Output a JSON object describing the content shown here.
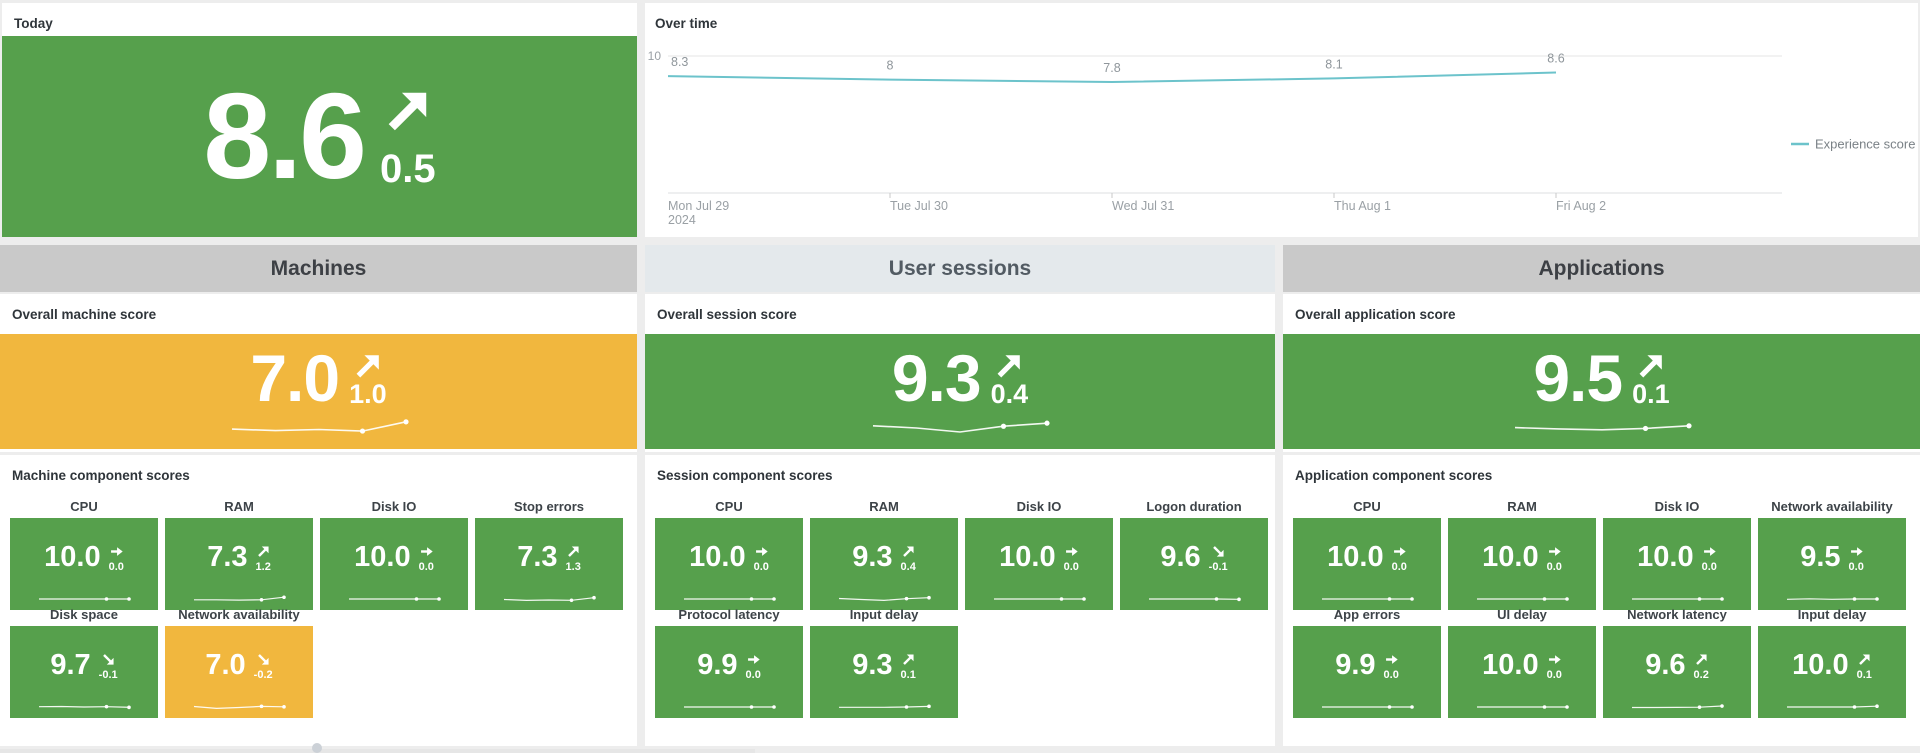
{
  "colors": {
    "green": "#56a04c",
    "yellow": "#f1b73e",
    "teal": "#6cc3cb",
    "header_gray": "#c9c9c9",
    "header_light": "#e4e9ec",
    "page_bg": "#ededed"
  },
  "today": {
    "title": "Today",
    "score": "8.6",
    "delta": "0.5",
    "trend": "up",
    "color": "green"
  },
  "over_time": {
    "title": "Over time"
  },
  "chart_data": [
    {
      "type": "line",
      "title": "Over time",
      "x": [
        "Mon Jul 29\n2024",
        "Tue Jul 30",
        "Wed Jul 31",
        "Thu Aug 1",
        "Fri Aug 2"
      ],
      "series": [
        {
          "name": "Experience score",
          "values": [
            8.3,
            8,
            7.8,
            8.1,
            8.6
          ]
        }
      ],
      "point_labels": [
        "8.3",
        "8",
        "7.8",
        "8.1",
        "8.6"
      ],
      "ylim": [
        0,
        10
      ],
      "y_ticks": [
        10
      ],
      "grid": "single gridline at y=10",
      "legend_position": "right",
      "line_color": "#6cc3cb"
    }
  ],
  "sections": [
    {
      "title": "Machines",
      "header_theme": "gray",
      "overall_title": "Overall machine score",
      "overall": {
        "score": "7.0",
        "delta": "1.0",
        "trend": "up",
        "color": "yellow",
        "spark": [
          4.5,
          3.8,
          4.3,
          3.6,
          7.8
        ]
      },
      "components_title": "Machine component scores",
      "components": [
        {
          "label": "CPU",
          "score": "10.0",
          "delta": "0.0",
          "trend": "flat",
          "color": "green",
          "spark": [
            5,
            5,
            5,
            5,
            5
          ]
        },
        {
          "label": "RAM",
          "score": "7.3",
          "delta": "1.2",
          "trend": "up",
          "color": "green",
          "spark": [
            4,
            4,
            3.6,
            4,
            7.2
          ]
        },
        {
          "label": "Disk IO",
          "score": "10.0",
          "delta": "0.0",
          "trend": "flat",
          "color": "green",
          "spark": [
            5,
            5,
            5,
            5,
            5
          ]
        },
        {
          "label": "Stop errors",
          "score": "7.3",
          "delta": "1.3",
          "trend": "up",
          "color": "green",
          "spark": [
            4.4,
            3.2,
            3.8,
            3.4,
            6.6
          ]
        },
        {
          "label": "Disk space",
          "score": "9.7",
          "delta": "-0.1",
          "trend": "down",
          "color": "green",
          "spark": [
            5.4,
            5.6,
            5,
            5.4,
            4.6
          ]
        },
        {
          "label": "Network availability",
          "score": "7.0",
          "delta": "-0.2",
          "trend": "down",
          "color": "yellow",
          "spark": [
            5.6,
            3.2,
            4.4,
            5.8,
            5.2
          ]
        }
      ]
    },
    {
      "title": "User sessions",
      "header_theme": "light",
      "overall_title": "Overall session score",
      "overall": {
        "score": "9.3",
        "delta": "0.4",
        "trend": "up",
        "color": "green",
        "spark": [
          6,
          5,
          3.2,
          5.8,
          7.2
        ]
      },
      "components_title": "Session component scores",
      "components": [
        {
          "label": "CPU",
          "score": "10.0",
          "delta": "0.0",
          "trend": "flat",
          "color": "green",
          "spark": [
            5,
            5,
            5,
            5,
            5
          ]
        },
        {
          "label": "RAM",
          "score": "9.3",
          "delta": "0.4",
          "trend": "up",
          "color": "green",
          "spark": [
            5.6,
            4.4,
            3.2,
            5.4,
            6.6
          ]
        },
        {
          "label": "Disk IO",
          "score": "10.0",
          "delta": "0.0",
          "trend": "flat",
          "color": "green",
          "spark": [
            5,
            5,
            5,
            5,
            5
          ]
        },
        {
          "label": "Logon duration",
          "score": "9.6",
          "delta": "-0.1",
          "trend": "down",
          "color": "green",
          "spark": [
            5,
            5,
            5,
            5,
            4.6
          ]
        },
        {
          "label": "Protocol latency",
          "score": "9.9",
          "delta": "0.0",
          "trend": "flat",
          "color": "green",
          "spark": [
            5,
            5,
            5,
            5,
            5
          ]
        },
        {
          "label": "Input delay",
          "score": "9.3",
          "delta": "0.1",
          "trend": "up",
          "color": "green",
          "spark": [
            4.6,
            4.6,
            4.6,
            5,
            5.8
          ]
        }
      ]
    },
    {
      "title": "Applications",
      "header_theme": "gray",
      "overall_title": "Overall application score",
      "overall": {
        "score": "9.5",
        "delta": "0.1",
        "trend": "up",
        "color": "green",
        "spark": [
          5.2,
          4.6,
          4.2,
          4.8,
          6
        ]
      },
      "components_title": "Application component scores",
      "components": [
        {
          "label": "CPU",
          "score": "10.0",
          "delta": "0.0",
          "trend": "flat",
          "color": "green",
          "spark": [
            5,
            5,
            5,
            5,
            5
          ]
        },
        {
          "label": "RAM",
          "score": "10.0",
          "delta": "0.0",
          "trend": "flat",
          "color": "green",
          "spark": [
            5,
            5,
            5,
            5,
            5
          ]
        },
        {
          "label": "Disk IO",
          "score": "10.0",
          "delta": "0.0",
          "trend": "flat",
          "color": "green",
          "spark": [
            5,
            5,
            5,
            5,
            5
          ]
        },
        {
          "label": "Network availability",
          "score": "9.5",
          "delta": "0.0",
          "trend": "flat",
          "color": "green",
          "spark": [
            4.6,
            5.2,
            4.6,
            5,
            5
          ]
        },
        {
          "label": "App errors",
          "score": "9.9",
          "delta": "0.0",
          "trend": "flat",
          "color": "green",
          "spark": [
            5,
            5,
            5,
            5,
            5
          ]
        },
        {
          "label": "UI delay",
          "score": "10.0",
          "delta": "0.0",
          "trend": "flat",
          "color": "green",
          "spark": [
            5,
            5,
            5,
            5,
            5
          ]
        },
        {
          "label": "Network latency",
          "score": "9.6",
          "delta": "0.2",
          "trend": "up",
          "color": "green",
          "spark": [
            4.4,
            4.4,
            4.5,
            4.8,
            6.2
          ]
        },
        {
          "label": "Input delay",
          "score": "10.0",
          "delta": "0.1",
          "trend": "up",
          "color": "green",
          "spark": [
            5,
            5,
            5,
            5,
            6
          ]
        }
      ]
    }
  ]
}
